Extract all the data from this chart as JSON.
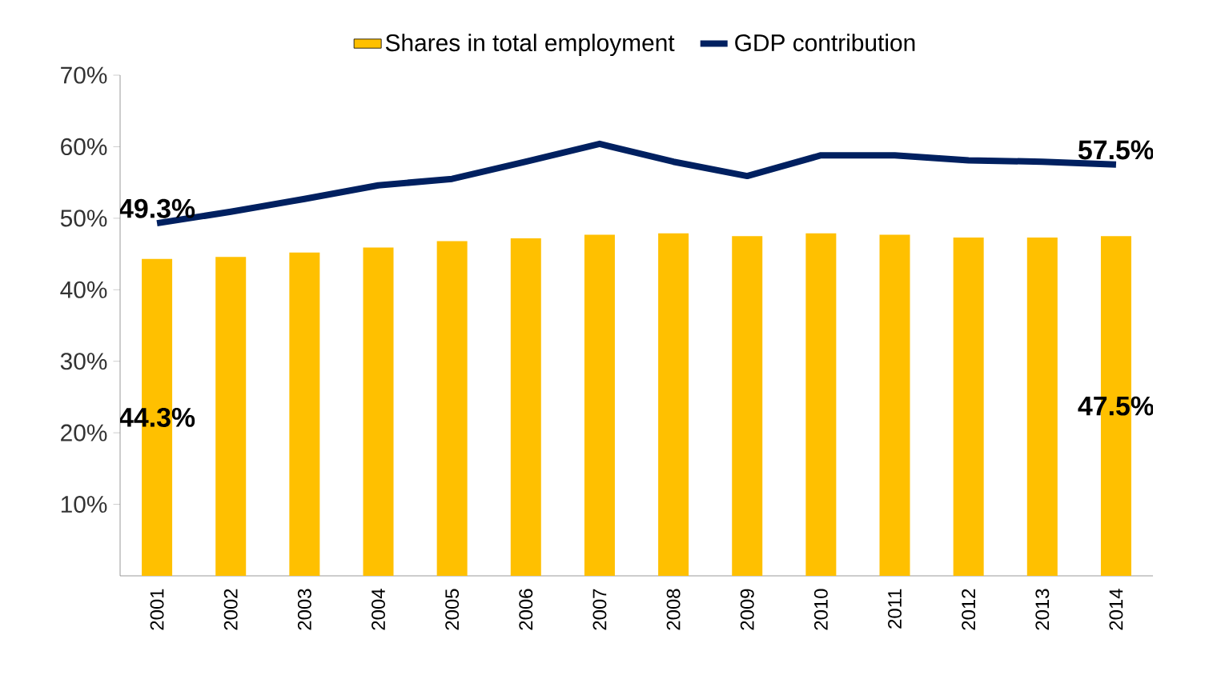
{
  "chart_data": {
    "type": "bar",
    "categories": [
      "2001",
      "2002",
      "2003",
      "2004",
      "2005",
      "2006",
      "2007",
      "2008",
      "2009",
      "2010",
      "2011",
      "2012",
      "2013",
      "2014"
    ],
    "series": [
      {
        "name": "Shares in total employment",
        "color": "#ffc000",
        "values": [
          44.3,
          44.6,
          45.2,
          45.9,
          46.8,
          47.2,
          47.7,
          47.9,
          47.5,
          47.9,
          47.7,
          47.3,
          47.3,
          47.5
        ],
        "value_labels": [
          "44.3%",
          null,
          null,
          null,
          null,
          null,
          null,
          null,
          null,
          null,
          null,
          null,
          null,
          "47.5%"
        ]
      },
      {
        "name": "GDP contribution",
        "type": "line",
        "color": "#002060",
        "marker": "none",
        "values": [
          49.3,
          50.9,
          52.7,
          54.6,
          55.5,
          57.9,
          60.4,
          57.9,
          55.9,
          58.8,
          58.8,
          58.1,
          57.9,
          57.5
        ],
        "value_labels": [
          "49.3%",
          null,
          null,
          null,
          null,
          null,
          null,
          null,
          null,
          null,
          null,
          null,
          null,
          "57.5%"
        ]
      }
    ],
    "ylim": [
      0,
      70
    ],
    "yticks": [
      {
        "value": 10,
        "label": "10%"
      },
      {
        "value": 20,
        "label": "20%"
      },
      {
        "value": 30,
        "label": "30%"
      },
      {
        "value": 40,
        "label": "40%"
      },
      {
        "value": 50,
        "label": "50%"
      },
      {
        "value": 60,
        "label": "60%"
      },
      {
        "value": 70,
        "label": "70%"
      }
    ],
    "grid": false,
    "legend": "top"
  }
}
